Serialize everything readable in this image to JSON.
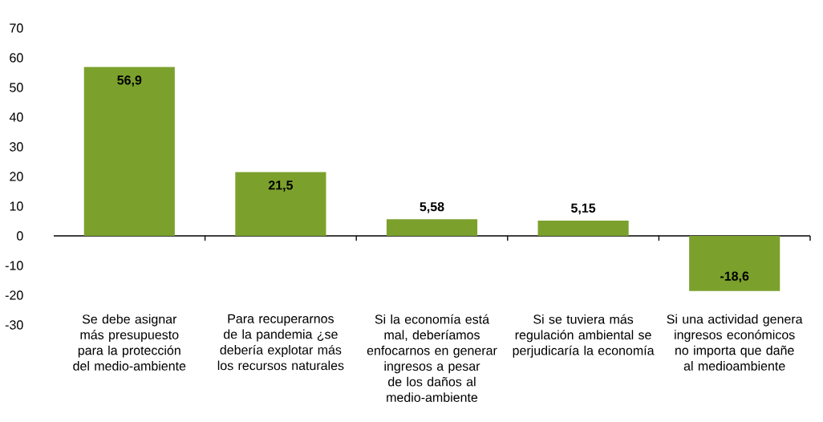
{
  "chart_data": {
    "type": "bar",
    "categories": [
      "Se debe asignar más presupuesto para la protección del medio-ambiente",
      "Para recuperarnos de la pandemia ¿se debería explotar más los recursos naturales",
      "Si la economía está mal, deberíamos enfocarnos en generar ingresos a pesar de los daños al medio-ambiente",
      "Si se tuviera más regulación ambiental se perjudicaría la economía",
      "Si una actividad genera ingresos económicos no importa que dañe al medioambiente"
    ],
    "values": [
      56.9,
      21.5,
      5.58,
      5.15,
      -18.6
    ],
    "value_labels": [
      "56,9",
      "21,5",
      "5,58",
      "5,15",
      "-18,6"
    ],
    "color": "#7ba12c",
    "ylim": [
      -30,
      70
    ],
    "yticks": [
      -30,
      -20,
      -10,
      0,
      10,
      20,
      30,
      40,
      50,
      60,
      70
    ]
  }
}
